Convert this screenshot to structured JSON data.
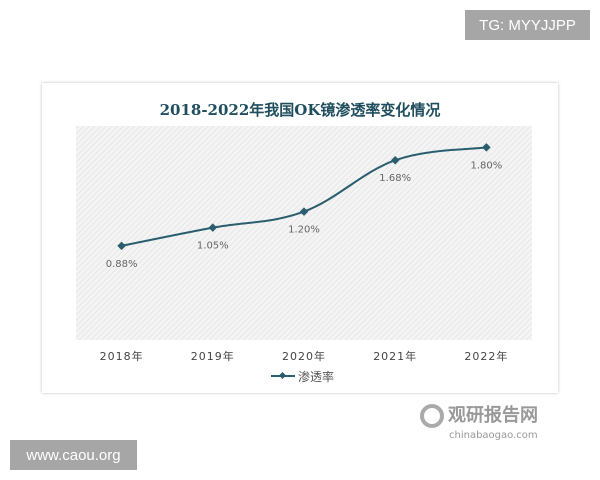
{
  "watermarks": {
    "top_right": "TG: MYYJJPP",
    "bottom_left": "www.caou.org",
    "logo_cn": "观研报告网",
    "logo_en": "chinabaogao.com"
  },
  "colors": {
    "series": "#2a5d6e",
    "title": "#1f4e5f",
    "label": "#666666",
    "plot_bg": "#f2f2f2"
  },
  "chart_data": {
    "type": "line",
    "title": "2018-2022年我国OK镜渗透率变化情况",
    "categories": [
      "2018年",
      "2019年",
      "2020年",
      "2021年",
      "2022年"
    ],
    "series": [
      {
        "name": "渗透率",
        "values": [
          0.88,
          1.05,
          1.2,
          1.68,
          1.8
        ]
      }
    ],
    "data_labels": [
      "0.88%",
      "1.05%",
      "1.20%",
      "1.68%",
      "1.80%"
    ],
    "ylim": [
      0,
      2.0
    ],
    "smooth": true,
    "marker": "diamond",
    "grid": false,
    "legend": "bottom",
    "xlabel": "",
    "ylabel": ""
  }
}
